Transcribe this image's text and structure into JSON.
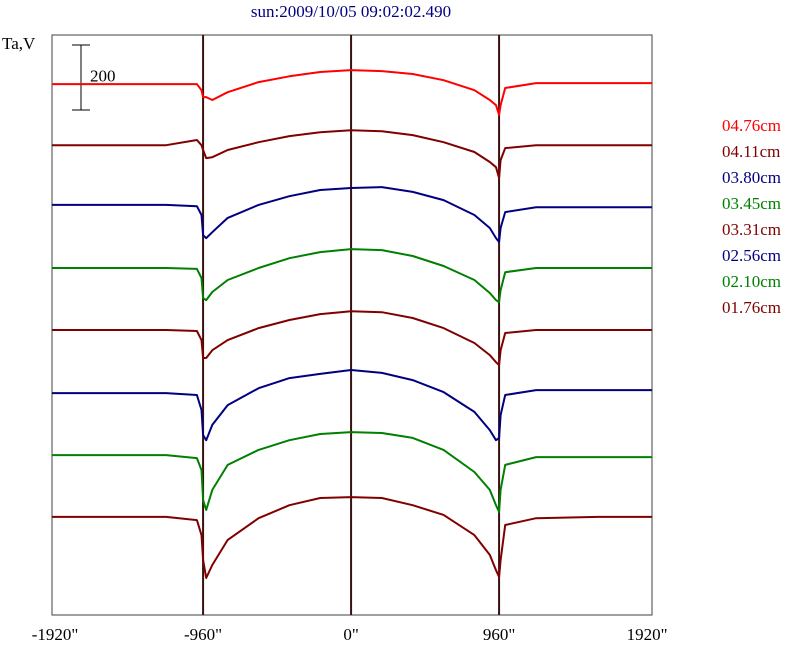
{
  "chart_data": {
    "type": "line",
    "title": "sun:2009/10/05 09:02:02.490",
    "y_label": "Ta,V",
    "scale_bar": 200,
    "xlim": [
      -1940,
      1952
    ],
    "ylim": [
      0,
      1785
    ],
    "xticks": [
      {
        "value": -1920,
        "label": "-1920\""
      },
      {
        "value": -960,
        "label": "-960\""
      },
      {
        "value": 0,
        "label": "0\""
      },
      {
        "value": 960,
        "label": "960\""
      },
      {
        "value": 1920,
        "label": "1920\""
      }
    ],
    "vlines": [
      -960,
      0,
      960
    ],
    "x": [
      -1940,
      -1600,
      -1200,
      -1000,
      -970,
      -960,
      -940,
      -900,
      -800,
      -600,
      -400,
      -200,
      0,
      200,
      400,
      600,
      800,
      900,
      940,
      960,
      970,
      1000,
      1200,
      1600,
      1952
    ],
    "series": [
      {
        "name": "04.76cm",
        "color": "#ff0000",
        "values": [
          1634,
          1634,
          1634,
          1634,
          1615,
          1594,
          1594,
          1585,
          1609,
          1640,
          1658,
          1671,
          1677,
          1674,
          1665,
          1646,
          1615,
          1585,
          1569,
          1539,
          1569,
          1622,
          1637,
          1637,
          1637
        ]
      },
      {
        "name": "04.11cm",
        "color": "#800000",
        "values": [
          1446,
          1446,
          1446,
          1462,
          1446,
          1431,
          1406,
          1409,
          1431,
          1455,
          1474,
          1486,
          1492,
          1489,
          1477,
          1455,
          1425,
          1394,
          1378,
          1345,
          1400,
          1437,
          1446,
          1446,
          1446
        ]
      },
      {
        "name": "03.80cm",
        "color": "#000080",
        "values": [
          1262,
          1262,
          1262,
          1258,
          1231,
          1169,
          1160,
          1178,
          1222,
          1262,
          1289,
          1308,
          1314,
          1317,
          1302,
          1277,
          1231,
          1191,
          1160,
          1148,
          1191,
          1240,
          1255,
          1255,
          1255
        ]
      },
      {
        "name": "03.45cm",
        "color": "#008000",
        "values": [
          1068,
          1068,
          1068,
          1065,
          1037,
          975,
          969,
          994,
          1031,
          1068,
          1098,
          1117,
          1126,
          1123,
          1105,
          1074,
          1031,
          991,
          969,
          963,
          1000,
          1055,
          1068,
          1068,
          1068
        ]
      },
      {
        "name": "03.31cm",
        "color": "#800000",
        "values": [
          877,
          877,
          877,
          874,
          846,
          791,
          791,
          815,
          846,
          883,
          908,
          926,
          935,
          932,
          914,
          883,
          837,
          800,
          778,
          769,
          815,
          868,
          877,
          877,
          877
        ]
      },
      {
        "name": "02.56cm",
        "color": "#000080",
        "values": [
          683,
          683,
          683,
          677,
          631,
          554,
          538,
          585,
          646,
          698,
          729,
          742,
          754,
          745,
          723,
          686,
          625,
          569,
          538,
          545,
          615,
          677,
          692,
          692,
          692
        ]
      },
      {
        "name": "02.10cm",
        "color": "#008000",
        "values": [
          492,
          492,
          492,
          483,
          446,
          354,
          323,
          385,
          462,
          508,
          538,
          557,
          563,
          560,
          545,
          508,
          440,
          385,
          338,
          317,
          385,
          462,
          486,
          486,
          486
        ]
      },
      {
        "name": "01.76cm",
        "color": "#800000",
        "values": [
          302,
          302,
          302,
          292,
          246,
          169,
          114,
          154,
          231,
          298,
          338,
          360,
          363,
          360,
          338,
          308,
          246,
          185,
          138,
          117,
          169,
          277,
          298,
          302,
          302
        ]
      }
    ]
  }
}
